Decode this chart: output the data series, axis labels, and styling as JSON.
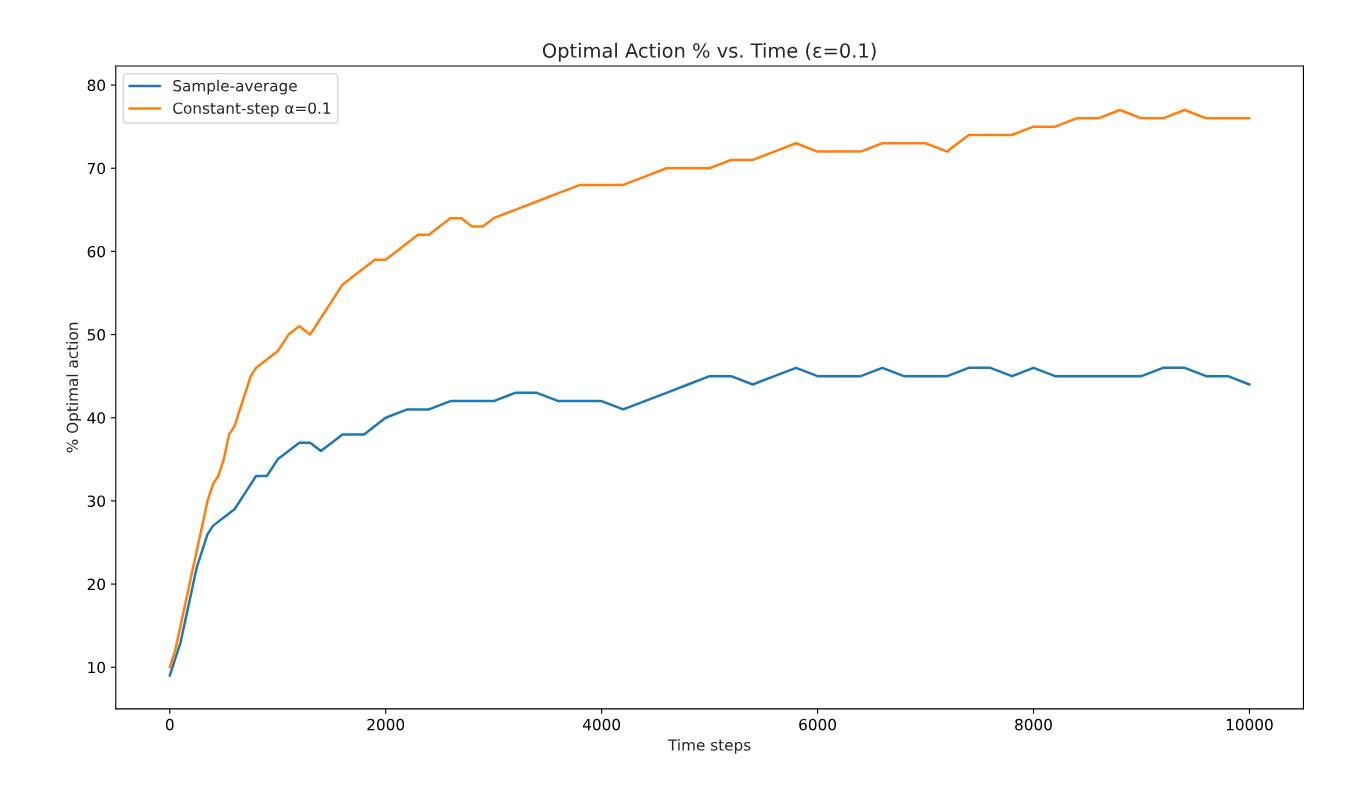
{
  "chart_data": {
    "type": "line",
    "title": "Optimal Action % vs. Time (ε=0.1)",
    "xlabel": "Time steps",
    "ylabel": "% Optimal action",
    "xlim": [
      -500,
      10500
    ],
    "xticks": [
      0,
      2000,
      4000,
      6000,
      8000,
      10000
    ],
    "ylim": [
      5,
      82.3
    ],
    "yticks": [
      10,
      20,
      30,
      40,
      50,
      60,
      70,
      80
    ],
    "grid": false,
    "legend": "top left",
    "line_style": "solid",
    "marker": "none",
    "series": [
      {
        "name": "Sample-average",
        "color": "#1f77b4",
        "x": [
          0,
          50,
          100,
          150,
          200,
          250,
          300,
          350,
          400,
          500,
          600,
          700,
          800,
          900,
          1000,
          1100,
          1200,
          1300,
          1400,
          1500,
          1600,
          1700,
          1800,
          1900,
          2000,
          2200,
          2400,
          2600,
          2800,
          3000,
          3200,
          3400,
          3600,
          3800,
          4000,
          4200,
          4400,
          4600,
          4800,
          5000,
          5200,
          5400,
          5600,
          5800,
          6000,
          6200,
          6400,
          6600,
          6800,
          7000,
          7200,
          7400,
          7600,
          7800,
          8000,
          8200,
          8400,
          8600,
          8800,
          9000,
          9200,
          9400,
          9600,
          9800,
          10000
        ],
        "values": [
          9,
          11,
          13,
          16,
          19,
          22,
          24,
          26,
          27,
          28,
          29,
          31,
          33,
          33,
          35,
          36,
          37,
          37,
          36,
          37,
          38,
          38,
          38,
          39,
          40,
          41,
          41,
          42,
          42,
          42,
          43,
          43,
          42,
          42,
          42,
          41,
          42,
          43,
          44,
          45,
          45,
          44,
          45,
          46,
          45,
          45,
          45,
          46,
          45,
          45,
          45,
          46,
          46,
          45,
          46,
          45,
          45,
          45,
          45,
          45,
          46,
          46,
          45,
          45,
          44
        ]
      },
      {
        "name": "Constant-step α=0.1",
        "color": "#ff7f0e",
        "x": [
          0,
          50,
          100,
          150,
          200,
          250,
          300,
          350,
          400,
          450,
          500,
          550,
          600,
          650,
          700,
          750,
          800,
          900,
          1000,
          1100,
          1200,
          1300,
          1400,
          1500,
          1600,
          1700,
          1800,
          1900,
          2000,
          2100,
          2200,
          2300,
          2400,
          2500,
          2600,
          2700,
          2800,
          2900,
          3000,
          3200,
          3400,
          3600,
          3800,
          4000,
          4200,
          4400,
          4600,
          4800,
          5000,
          5200,
          5400,
          5600,
          5800,
          6000,
          6200,
          6400,
          6600,
          6800,
          7000,
          7200,
          7400,
          7600,
          7800,
          8000,
          8200,
          8400,
          8600,
          8800,
          9000,
          9200,
          9400,
          9600,
          9800,
          10000
        ],
        "values": [
          10,
          12,
          15,
          18,
          21,
          24,
          27,
          30,
          32,
          33,
          35,
          38,
          39,
          41,
          43,
          45,
          46,
          47,
          48,
          50,
          51,
          50,
          52,
          54,
          56,
          57,
          58,
          59,
          59,
          60,
          61,
          62,
          62,
          63,
          64,
          64,
          63,
          63,
          64,
          65,
          66,
          67,
          68,
          68,
          68,
          69,
          70,
          70,
          70,
          71,
          71,
          72,
          73,
          72,
          72,
          72,
          73,
          73,
          73,
          72,
          74,
          74,
          74,
          75,
          75,
          76,
          76,
          77,
          76,
          76,
          77,
          76,
          76,
          76
        ]
      }
    ]
  }
}
